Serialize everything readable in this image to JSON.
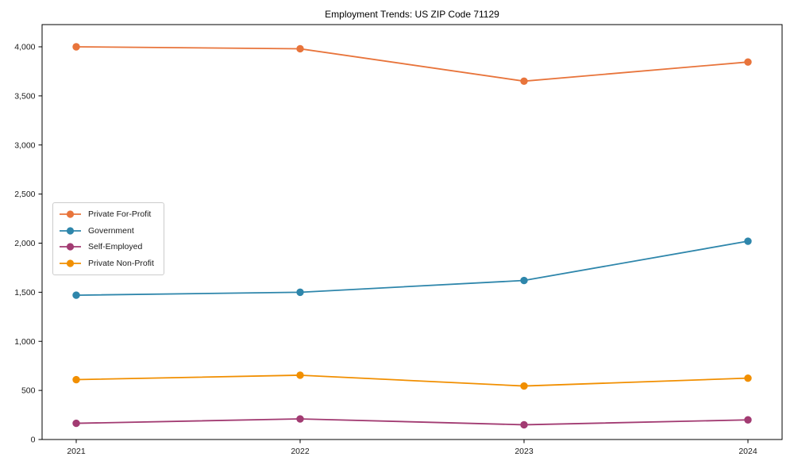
{
  "chart_data": {
    "type": "line",
    "title": "Employment Trends: US ZIP Code 71129",
    "categories": [
      "2021",
      "2022",
      "2023",
      "2024"
    ],
    "series": [
      {
        "name": "Private For-Profit",
        "color": "#E8743B",
        "values": [
          4000,
          3980,
          3650,
          3845
        ]
      },
      {
        "name": "Government",
        "color": "#2E86AB",
        "values": [
          1470,
          1500,
          1620,
          2020
        ]
      },
      {
        "name": "Self-Employed",
        "color": "#A23B72",
        "values": [
          165,
          210,
          150,
          200
        ]
      },
      {
        "name": "Private Non-Profit",
        "color": "#F18F01",
        "values": [
          610,
          655,
          545,
          625
        ]
      }
    ],
    "xlabel": "",
    "ylabel": "",
    "ylim": [
      0,
      4000
    ],
    "ytick_step": 500,
    "ytick_labels": [
      "0",
      "500",
      "1,000",
      "1,500",
      "2,000",
      "2,500",
      "3,000",
      "3,500",
      "4,000"
    ],
    "grid": false,
    "legend_position": "center-left",
    "frame": "full-box"
  }
}
